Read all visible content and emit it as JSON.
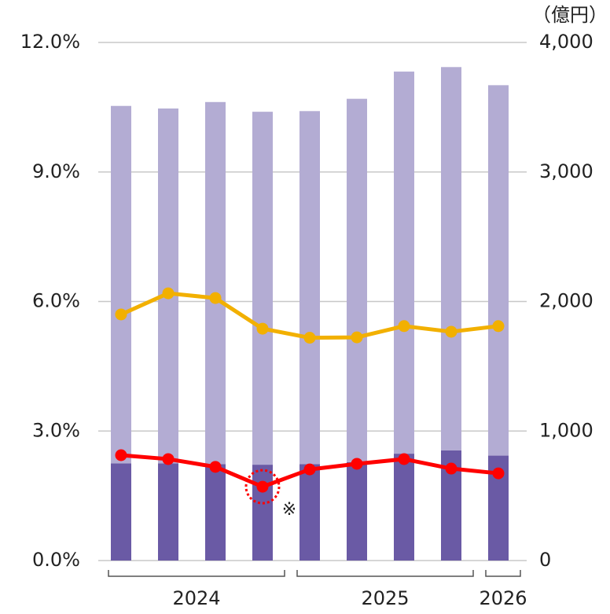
{
  "chart_data": {
    "type": "bar-line",
    "categories": [
      null,
      null,
      null,
      null,
      null,
      null,
      null,
      null,
      null
    ],
    "groups": [
      {
        "label": "2024",
        "count": 4
      },
      {
        "label": "2025",
        "count": 4
      },
      {
        "label": "2026",
        "count": 1
      }
    ],
    "series": [
      {
        "color": "#6a5aa5",
        "axis": "y2",
        "kind": "bar",
        "values": [
          750,
          750,
          745,
          740,
          745,
          760,
          825,
          850,
          810
        ]
      },
      {
        "color": "#b3acd3",
        "axis": "y2",
        "kind": "bar",
        "values": [
          2760,
          2740,
          2795,
          2725,
          2725,
          2805,
          2950,
          2960,
          2860
        ]
      },
      {
        "color": "#f2b000",
        "kind": "line",
        "values": [
          5.7,
          6.19,
          6.08,
          5.37,
          5.16,
          5.17,
          5.43,
          5.3,
          5.43
        ]
      },
      {
        "color": "#ff0000",
        "kind": "line",
        "values": [
          2.44,
          2.35,
          2.17,
          1.71,
          2.11,
          2.24,
          2.35,
          2.13,
          2.02
        ]
      }
    ],
    "ylim": [
      0,
      12
    ],
    "yticks": [
      {
        "value": 0,
        "label": "0.0%"
      },
      {
        "value": 3,
        "label": "3.0%"
      },
      {
        "value": 6,
        "label": "6.0%"
      },
      {
        "value": 9,
        "label": "9.0%"
      },
      {
        "value": 12,
        "label": "12.0%"
      }
    ],
    "y2lim": [
      0,
      4000
    ],
    "y2ticks": [
      0,
      {
        "value": 1000,
        "label": "1,000"
      },
      {
        "value": 2000,
        "label": "2,000"
      },
      {
        "value": 3000,
        "label": "3,000"
      },
      {
        "value": 4000,
        "label": "4,000"
      }
    ],
    "y2_unit": "（億円）",
    "highlight": {
      "series": 3,
      "index": 3,
      "note": "※"
    },
    "grid": true
  }
}
